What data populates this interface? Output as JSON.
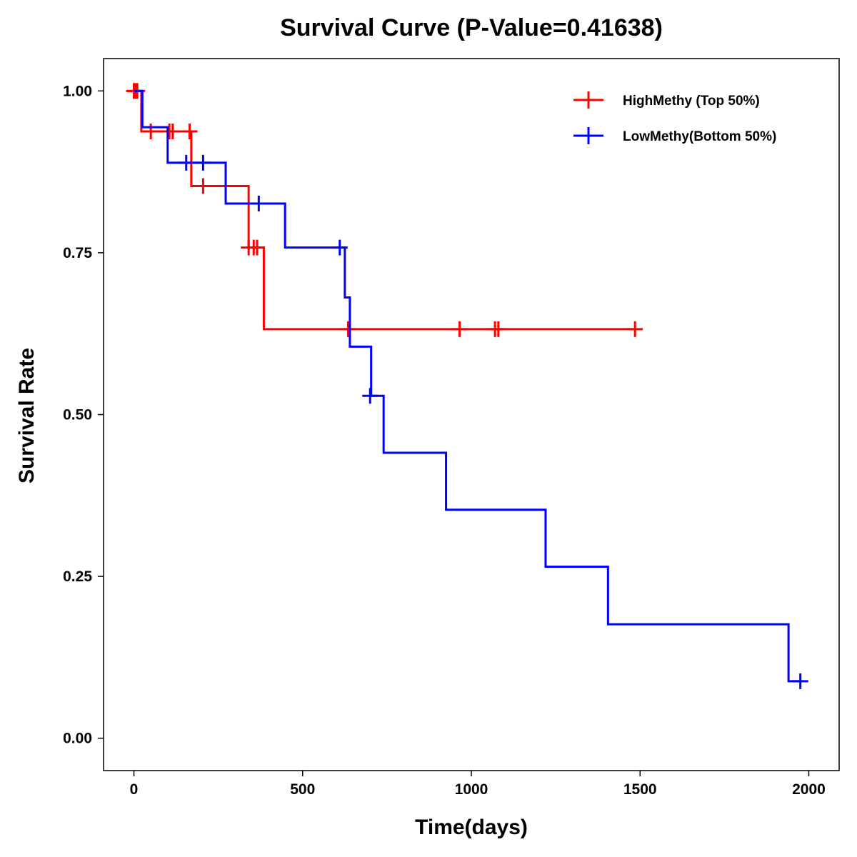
{
  "chart_data": {
    "type": "line",
    "title": "Survival Curve (P-Value=0.41638)",
    "xlabel": "Time(days)",
    "ylabel": "Survival Rate",
    "xlim": [
      -90,
      2090
    ],
    "ylim": [
      -0.05,
      1.05
    ],
    "x_ticks": [
      0,
      500,
      1000,
      1500,
      2000
    ],
    "x_tick_labels": [
      "0",
      "500",
      "1000",
      "1500",
      "2000"
    ],
    "y_ticks": [
      0,
      0.25,
      0.5,
      0.75,
      1.0
    ],
    "y_tick_labels": [
      "0.00",
      "0.25",
      "0.50",
      "0.75",
      "1.00"
    ],
    "grid": false,
    "legend_position": "top-right",
    "series": [
      {
        "name": "HighMethy (Top 50%)",
        "color": "#ff0000",
        "steps": [
          [
            0,
            1.0
          ],
          [
            22,
            0.9375
          ],
          [
            170,
            0.853
          ],
          [
            340,
            0.758
          ],
          [
            385,
            0.632
          ],
          [
            1490,
            0.632
          ]
        ],
        "censored": [
          [
            0,
            1.0
          ],
          [
            5,
            1.0
          ],
          [
            10,
            1.0
          ],
          [
            50,
            0.9375
          ],
          [
            105,
            0.9375
          ],
          [
            115,
            0.9375
          ],
          [
            165,
            0.9375
          ],
          [
            205,
            0.853
          ],
          [
            340,
            0.758
          ],
          [
            355,
            0.758
          ],
          [
            365,
            0.758
          ],
          [
            635,
            0.632
          ],
          [
            965,
            0.632
          ],
          [
            1070,
            0.632
          ],
          [
            1080,
            0.632
          ],
          [
            1485,
            0.632
          ]
        ]
      },
      {
        "name": "LowMethy(Bottom 50%)",
        "color": "#0000ff",
        "steps": [
          [
            0,
            1.0
          ],
          [
            25,
            0.944
          ],
          [
            100,
            0.889
          ],
          [
            272,
            0.826
          ],
          [
            448,
            0.758
          ],
          [
            625,
            0.681
          ],
          [
            640,
            0.605
          ],
          [
            703,
            0.529
          ],
          [
            740,
            0.441
          ],
          [
            925,
            0.353
          ],
          [
            1220,
            0.265
          ],
          [
            1405,
            0.176
          ],
          [
            1940,
            0.088
          ],
          [
            1975,
            0.088
          ]
        ],
        "censored": [
          [
            155,
            0.889
          ],
          [
            205,
            0.889
          ],
          [
            370,
            0.826
          ],
          [
            610,
            0.758
          ],
          [
            700,
            0.529
          ],
          [
            1975,
            0.088
          ]
        ]
      }
    ]
  }
}
